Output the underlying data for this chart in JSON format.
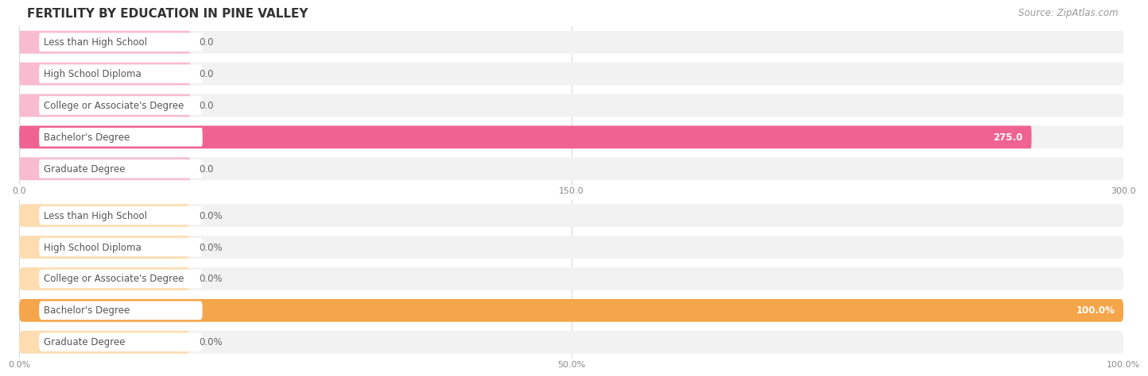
{
  "title": "FERTILITY BY EDUCATION IN PINE VALLEY",
  "source": "Source: ZipAtlas.com",
  "chart1": {
    "categories": [
      "Less than High School",
      "High School Diploma",
      "College or Associate's Degree",
      "Bachelor's Degree",
      "Graduate Degree"
    ],
    "values": [
      0.0,
      0.0,
      0.0,
      275.0,
      0.0
    ],
    "xlim": [
      0,
      300
    ],
    "xticks": [
      0.0,
      150.0,
      300.0
    ],
    "xticklabels": [
      "0.0",
      "150.0",
      "300.0"
    ],
    "bar_color_active": "#f06292",
    "bar_color_inactive": "#f8bbd0",
    "bg_row_color": "#f2f2f2"
  },
  "chart2": {
    "categories": [
      "Less than High School",
      "High School Diploma",
      "College or Associate's Degree",
      "Bachelor's Degree",
      "Graduate Degree"
    ],
    "values": [
      0.0,
      0.0,
      0.0,
      100.0,
      0.0
    ],
    "xlim": [
      0,
      100
    ],
    "xticks": [
      0.0,
      50.0,
      100.0
    ],
    "xticklabels": [
      "0.0%",
      "50.0%",
      "100.0%"
    ],
    "bar_color_active": "#f5a54a",
    "bar_color_inactive": "#fddcb0",
    "bg_row_color": "#f2f2f2"
  },
  "label_text_color": "#555555",
  "background_color": "#ffffff",
  "title_fontsize": 11,
  "source_fontsize": 8.5,
  "label_fontsize": 8.5,
  "value_fontsize": 8.5,
  "tick_fontsize": 8
}
